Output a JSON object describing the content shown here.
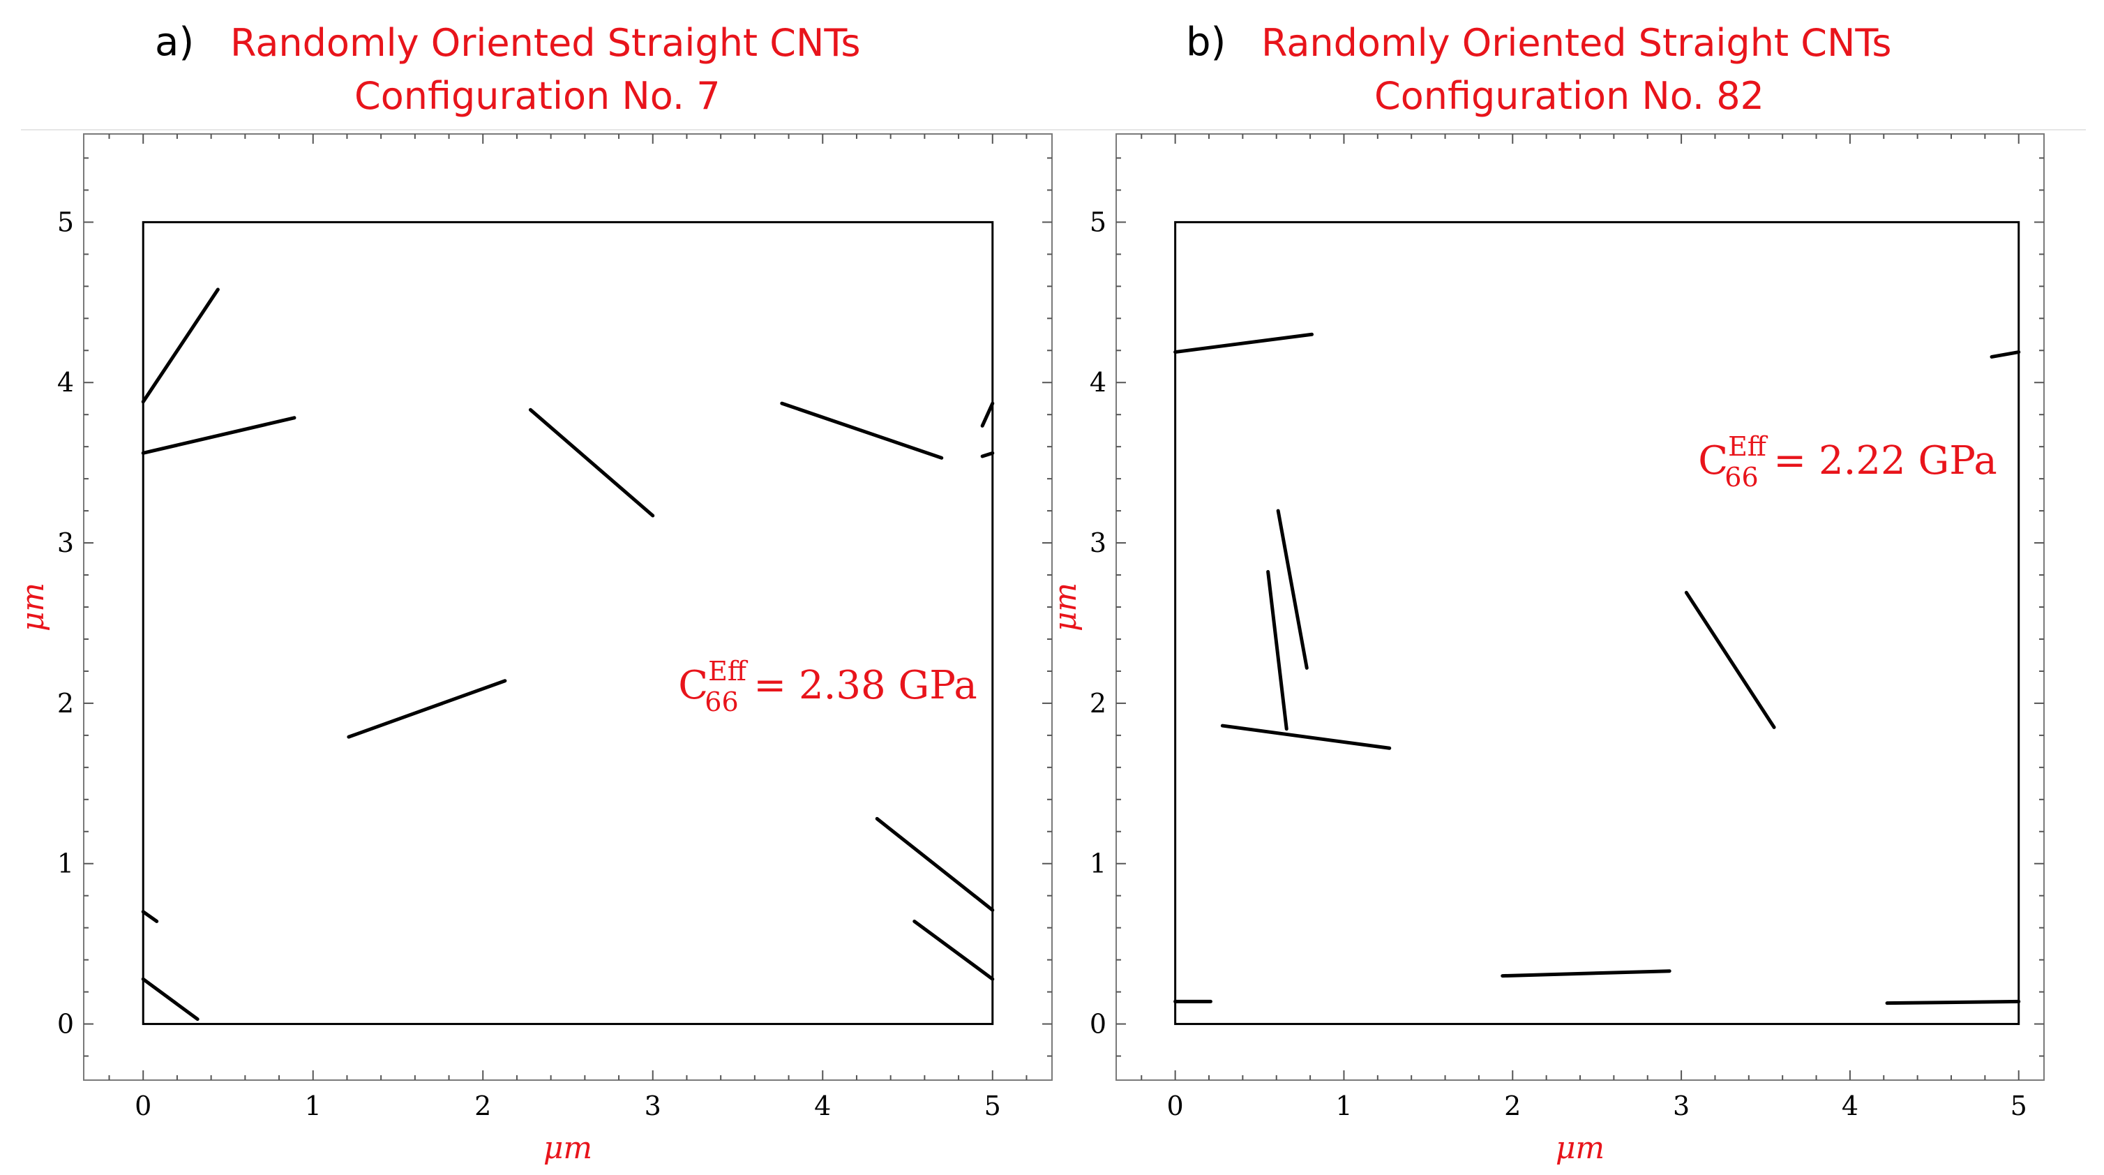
{
  "figure": {
    "accent_color": "#e8141b",
    "tube_color": "#000000"
  },
  "chart_data": [
    {
      "type": "line",
      "panel_letter": "a)",
      "title_line1": "Randomly Oriented Straight CNTs",
      "title_line2": "Configuration No. 7",
      "xlabel": "μm",
      "ylabel": "μm",
      "xlim": [
        -0.35,
        5.35
      ],
      "ylim": [
        -0.35,
        5.55
      ],
      "xticks": [
        "0",
        "1",
        "2",
        "3",
        "4",
        "5"
      ],
      "yticks": [
        "0",
        "1",
        "2",
        "3",
        "4",
        "5"
      ],
      "box": [
        0,
        0,
        5,
        5
      ],
      "annotation": {
        "base": "C",
        "sup": "Eff",
        "sub": "66",
        "text": " = 2.38 GPa"
      },
      "annotation_at": [
        3.15,
        2.03
      ],
      "segments": [
        [
          [
            0,
            3.88
          ],
          [
            0.44,
            4.58
          ]
        ],
        [
          [
            0,
            3.56
          ],
          [
            0.89,
            3.78
          ]
        ],
        [
          [
            2.28,
            3.83
          ],
          [
            3.0,
            3.17
          ]
        ],
        [
          [
            3.76,
            3.87
          ],
          [
            4.7,
            3.53
          ]
        ],
        [
          [
            4.94,
            3.73
          ],
          [
            5.0,
            3.87
          ]
        ],
        [
          [
            4.94,
            3.54
          ],
          [
            5.0,
            3.56
          ]
        ],
        [
          [
            1.21,
            1.79
          ],
          [
            2.13,
            2.14
          ]
        ],
        [
          [
            4.32,
            1.28
          ],
          [
            5.0,
            0.71
          ]
        ],
        [
          [
            4.54,
            0.64
          ],
          [
            5.0,
            0.28
          ]
        ],
        [
          [
            0,
            0.7
          ],
          [
            0.08,
            0.64
          ]
        ],
        [
          [
            0,
            0.28
          ],
          [
            0.32,
            0.03
          ]
        ]
      ]
    },
    {
      "type": "line",
      "panel_letter": "b)",
      "title_line1": "Randomly Oriented Straight CNTs",
      "title_line2": "Configuration No. 82",
      "xlabel": "μm",
      "ylabel": "μm",
      "xlim": [
        -0.35,
        5.15
      ],
      "ylim": [
        -0.35,
        5.55
      ],
      "xticks": [
        "0",
        "1",
        "2",
        "3",
        "4",
        "5"
      ],
      "yticks": [
        "0",
        "1",
        "2",
        "3",
        "4",
        "5"
      ],
      "box": [
        0,
        0,
        5,
        5
      ],
      "annotation": {
        "base": "C",
        "sup": "Eff",
        "sub": "66",
        "text": " = 2.22 GPa"
      },
      "annotation_at": [
        3.1,
        3.43
      ],
      "segments": [
        [
          [
            0,
            4.19
          ],
          [
            0.81,
            4.3
          ]
        ],
        [
          [
            4.84,
            4.16
          ],
          [
            5.0,
            4.19
          ]
        ],
        [
          [
            0.61,
            3.2
          ],
          [
            0.78,
            2.22
          ]
        ],
        [
          [
            0.55,
            2.82
          ],
          [
            0.66,
            1.84
          ]
        ],
        [
          [
            0.28,
            1.86
          ],
          [
            1.27,
            1.72
          ]
        ],
        [
          [
            3.03,
            2.69
          ],
          [
            3.55,
            1.85
          ]
        ],
        [
          [
            1.94,
            0.3
          ],
          [
            2.93,
            0.33
          ]
        ],
        [
          [
            0,
            0.14
          ],
          [
            0.21,
            0.14
          ]
        ],
        [
          [
            4.22,
            0.13
          ],
          [
            5.0,
            0.14
          ]
        ]
      ]
    }
  ]
}
